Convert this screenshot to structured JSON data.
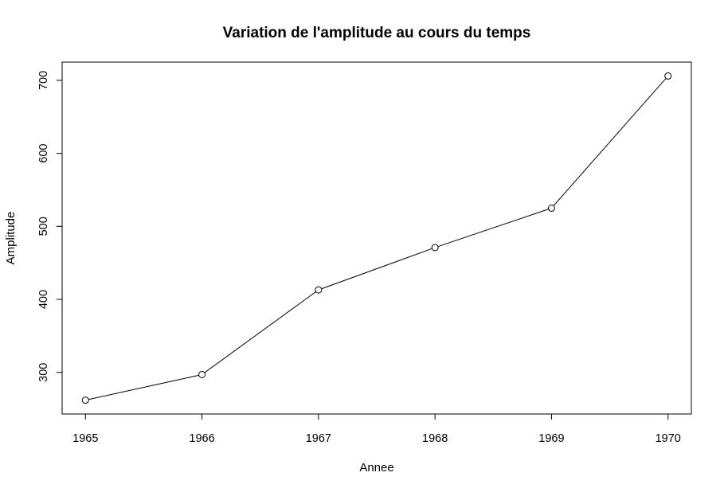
{
  "chart_data": {
    "type": "line",
    "title": "Variation de l'amplitude au cours du temps",
    "xlabel": "Annee",
    "ylabel": "Amplitude",
    "x": [
      1965,
      1966,
      1967,
      1968,
      1969,
      1970
    ],
    "series": [
      {
        "values": [
          262,
          297,
          413,
          471,
          525,
          706
        ]
      }
    ],
    "xlim": [
      1964.8,
      1970.2
    ],
    "ylim": [
      243,
      725
    ],
    "x_ticks": [
      1965,
      1966,
      1967,
      1968,
      1969,
      1970
    ],
    "y_ticks": [
      300,
      400,
      500,
      600,
      700
    ],
    "markers": "open-circle",
    "grid": false,
    "legend": "none",
    "colors": {
      "line": "#000000",
      "marker_stroke": "#000000",
      "marker_fill": "#ffffff",
      "frame": "#000000",
      "background": "#ffffff"
    }
  }
}
